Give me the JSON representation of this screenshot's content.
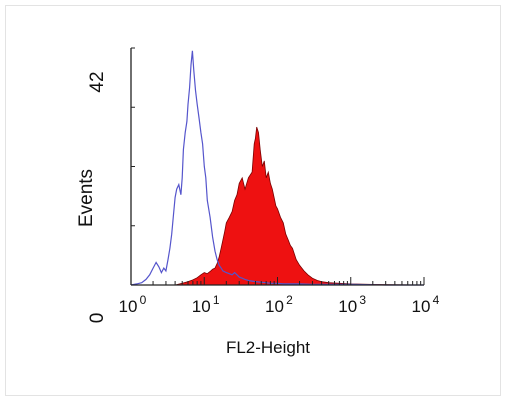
{
  "chart_data": {
    "type": "area",
    "title": "",
    "xlabel": "FL2-Height",
    "ylabel": "Events",
    "x_scale": "log",
    "xlim": [
      1,
      10000
    ],
    "ylim": [
      0,
      42
    ],
    "x_ticks": [
      {
        "base": "10",
        "exp": "0",
        "value": 1
      },
      {
        "base": "10",
        "exp": "1",
        "value": 10
      },
      {
        "base": "10",
        "exp": "2",
        "value": 100
      },
      {
        "base": "10",
        "exp": "3",
        "value": 1000
      },
      {
        "base": "10",
        "exp": "4",
        "value": 10000
      }
    ],
    "y_ticks": [
      {
        "label": "0",
        "value": 0
      },
      {
        "label": "42",
        "value": 42
      }
    ],
    "grid": false,
    "legend": "none",
    "series": [
      {
        "style": "line",
        "color": "#5555cc",
        "x": [
          1,
          1.2,
          1.4,
          1.6,
          1.8,
          2.0,
          2.2,
          2.4,
          2.6,
          2.8,
          3.0,
          3.2,
          3.4,
          3.6,
          3.8,
          4.0,
          4.2,
          4.5,
          4.8,
          5.0,
          5.2,
          5.5,
          5.8,
          6.0,
          6.3,
          6.6,
          6.9,
          7.2,
          7.6,
          8.0,
          8.5,
          9.0,
          9.5,
          10,
          10.5,
          11,
          12,
          13,
          14,
          15,
          16,
          17,
          18,
          20,
          22,
          24,
          26,
          28,
          30,
          33,
          36,
          40,
          45,
          50,
          60,
          70,
          80,
          100,
          120,
          150,
          200,
          300,
          500,
          1000,
          3000,
          10000
        ],
        "values": [
          0,
          0.2,
          0.4,
          1.0,
          1.8,
          3.0,
          4.0,
          3.2,
          2.2,
          3.0,
          2.5,
          4.5,
          6.5,
          9.0,
          12.5,
          15.5,
          17.0,
          17.8,
          16.0,
          19.0,
          24.0,
          27.0,
          29.0,
          32.0,
          35.0,
          39.0,
          41.5,
          38.0,
          34.5,
          32.0,
          29.5,
          27.0,
          25.0,
          21.0,
          19.0,
          15.0,
          12.0,
          8.5,
          6.0,
          4.5,
          3.5,
          3.0,
          2.5,
          2.2,
          2.0,
          1.8,
          2.2,
          1.8,
          1.4,
          1.2,
          1.0,
          0.8,
          0.7,
          0.6,
          0.5,
          0.4,
          0.3,
          0.3,
          0.2,
          0.2,
          0.2,
          0.1,
          0.1,
          0.1,
          0.0,
          0.0
        ]
      },
      {
        "style": "filled",
        "color": "#ee1111",
        "x": [
          4.0,
          5.0,
          6.0,
          7.0,
          8.0,
          9.0,
          10,
          11,
          12,
          13,
          14,
          15,
          16,
          17,
          18,
          19,
          20,
          22,
          24,
          26,
          28,
          30,
          33,
          36,
          40,
          45,
          48,
          50,
          52,
          55,
          58,
          62,
          66,
          70,
          75,
          80,
          85,
          90,
          95,
          100,
          110,
          120,
          130,
          140,
          150,
          160,
          180,
          200,
          230,
          260,
          300,
          350,
          400,
          500,
          700,
          1000,
          2000,
          10000
        ],
        "values": [
          0.0,
          0.3,
          0.6,
          0.9,
          1.3,
          1.8,
          2.2,
          2.0,
          2.4,
          2.8,
          3.0,
          3.8,
          5.0,
          6.5,
          8.0,
          9.5,
          11.0,
          12.0,
          13.0,
          15.0,
          16.0,
          18.0,
          19.0,
          17.0,
          19.0,
          20.0,
          25.0,
          26.0,
          28.0,
          27.0,
          24.0,
          21.0,
          22.0,
          19.0,
          20.0,
          18.0,
          17.0,
          15.5,
          14.0,
          13.5,
          12.0,
          11.0,
          9.0,
          8.0,
          7.0,
          6.5,
          4.5,
          3.5,
          2.5,
          1.8,
          1.2,
          0.8,
          0.6,
          0.4,
          0.3,
          0.2,
          0.1,
          0.0
        ]
      }
    ]
  }
}
